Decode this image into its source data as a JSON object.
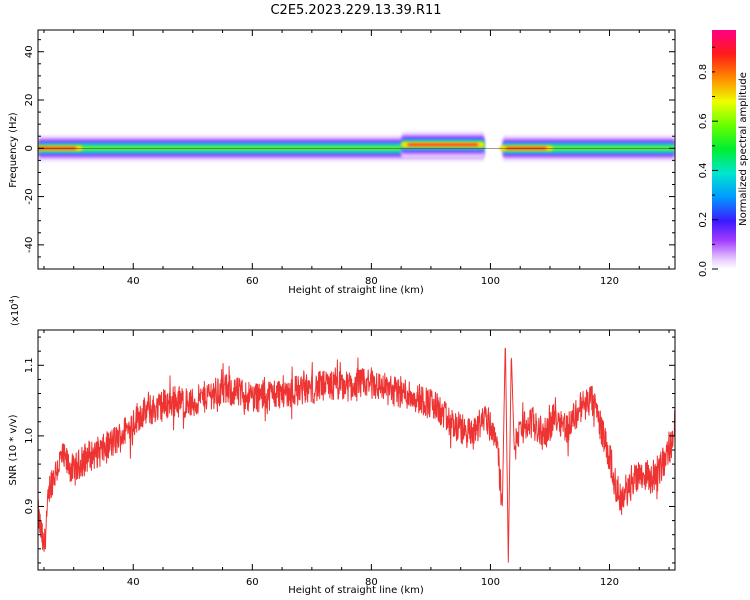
{
  "title": "C2E5.2023.229.13.39.R11",
  "chart_data": [
    {
      "type": "heatmap",
      "xlabel": "Height of straight line (km)",
      "ylabel": "Frequency (Hz)",
      "xlim": [
        24,
        131
      ],
      "ylim": [
        -50,
        49
      ],
      "xticks": [
        40,
        60,
        80,
        100,
        120
      ],
      "yticks": [
        40,
        20,
        0,
        -20,
        -40
      ],
      "colorbar": {
        "label": "Normalized spectral amplitude",
        "ticks": [
          0.0,
          0.2,
          0.4,
          0.6,
          0.8
        ],
        "range": [
          0,
          0.97
        ]
      },
      "band_segments": [
        {
          "x0": 24,
          "x1": 99,
          "center_hz": 0
        },
        {
          "x0": 85,
          "x1": 99,
          "center_hz": 1.5
        },
        {
          "x0": 102,
          "x1": 131,
          "center_hz": 0
        }
      ],
      "peaks": [
        {
          "x": 27,
          "center_hz": 0,
          "amp": 0.92
        },
        {
          "x": 92,
          "center_hz": 1.5,
          "amp": 0.93
        },
        {
          "x": 106,
          "center_hz": 0,
          "amp": 0.95
        }
      ]
    },
    {
      "type": "line",
      "xlabel": "Height of straight line (km)",
      "ylabel": "SNR (10 * v/v)",
      "y_multiplier": "(x10^4)",
      "xlim": [
        24,
        131
      ],
      "ylim": [
        0.81,
        1.15
      ],
      "xticks": [
        40,
        60,
        80,
        100,
        120
      ],
      "yticks": [
        0.9,
        1.0,
        1.1
      ],
      "color": "#ee3333",
      "series": [
        {
          "x": [
            24,
            25,
            26,
            28,
            30,
            32,
            35,
            38,
            41,
            44,
            47,
            50,
            53,
            56,
            60,
            64,
            68,
            72,
            76,
            80,
            83,
            86,
            89,
            91,
            93,
            95,
            97,
            99,
            101,
            102,
            102.5,
            103,
            103.5,
            104,
            105,
            107,
            109,
            111,
            113,
            115,
            117,
            118,
            119,
            120,
            121,
            122,
            123,
            125,
            127,
            129,
            131
          ],
          "y": [
            0.89,
            0.84,
            0.93,
            0.97,
            0.95,
            0.97,
            0.98,
            1.0,
            1.03,
            1.04,
            1.05,
            1.045,
            1.06,
            1.065,
            1.055,
            1.06,
            1.065,
            1.07,
            1.07,
            1.075,
            1.065,
            1.06,
            1.05,
            1.04,
            1.02,
            1.01,
            1.0,
            1.03,
            1.0,
            0.9,
            1.14,
            0.82,
            1.12,
            0.98,
            1.01,
            1.02,
            1.0,
            1.03,
            1.01,
            1.04,
            1.05,
            1.03,
            1.0,
            0.97,
            0.93,
            0.91,
            0.92,
            0.95,
            0.94,
            0.96,
            1.0
          ]
        }
      ]
    }
  ]
}
